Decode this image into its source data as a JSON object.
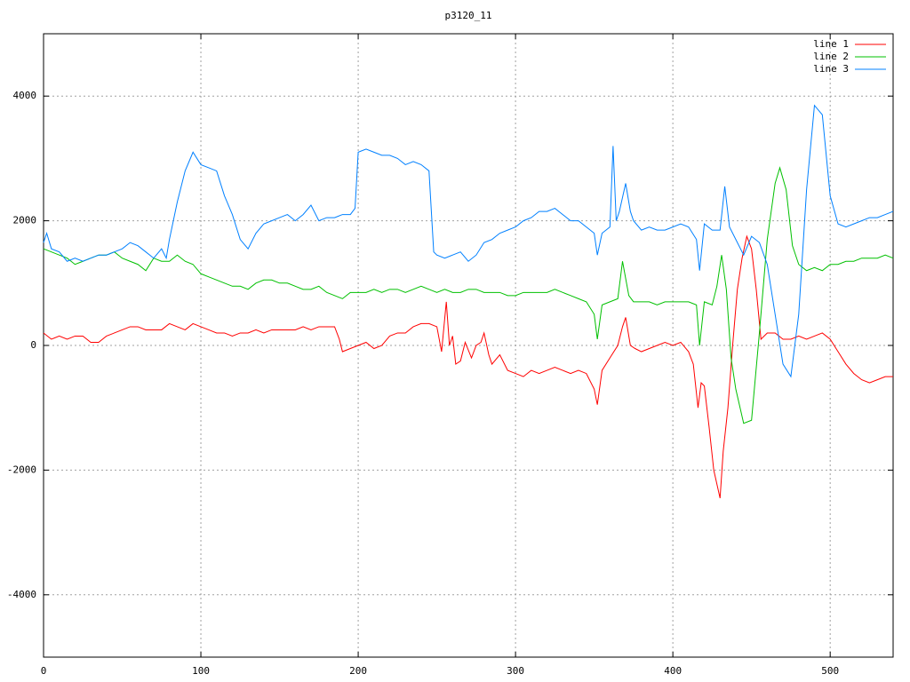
{
  "chart_data": {
    "type": "line",
    "title": "p3120_11",
    "xlim": [
      0,
      540
    ],
    "ylim": [
      -5000,
      5000
    ],
    "xticks": [
      0,
      100,
      200,
      300,
      400,
      500
    ],
    "yticks": [
      -4000,
      -2000,
      0,
      2000,
      4000
    ],
    "grid": true,
    "legend": "top-right",
    "series": [
      {
        "name": "line 1",
        "color": "#ff0000",
        "x": [
          0,
          5,
          10,
          15,
          20,
          25,
          30,
          35,
          40,
          45,
          50,
          55,
          60,
          65,
          70,
          75,
          80,
          85,
          90,
          95,
          100,
          105,
          110,
          115,
          120,
          125,
          130,
          135,
          140,
          145,
          150,
          155,
          160,
          165,
          170,
          175,
          180,
          185,
          188,
          190,
          195,
          200,
          205,
          210,
          215,
          220,
          225,
          230,
          235,
          240,
          245,
          250,
          253,
          256,
          258,
          260,
          262,
          265,
          268,
          272,
          275,
          278,
          280,
          283,
          285,
          290,
          295,
          300,
          305,
          310,
          315,
          320,
          325,
          330,
          335,
          340,
          345,
          350,
          352,
          355,
          360,
          365,
          368,
          370,
          373,
          376,
          380,
          385,
          390,
          395,
          400,
          405,
          410,
          413,
          416,
          418,
          420,
          423,
          426,
          430,
          432,
          435,
          438,
          441,
          444,
          447,
          450,
          453,
          456,
          460,
          465,
          470,
          475,
          480,
          485,
          490,
          495,
          500,
          505,
          510,
          515,
          520,
          525,
          530,
          535,
          540
        ],
        "values": [
          200,
          100,
          150,
          100,
          150,
          150,
          50,
          50,
          150,
          200,
          250,
          300,
          300,
          250,
          250,
          250,
          350,
          300,
          250,
          350,
          300,
          250,
          200,
          200,
          150,
          200,
          200,
          250,
          200,
          250,
          250,
          250,
          250,
          300,
          250,
          300,
          300,
          300,
          100,
          -100,
          -50,
          0,
          50,
          -50,
          0,
          150,
          200,
          200,
          300,
          350,
          350,
          300,
          -100,
          700,
          0,
          150,
          -300,
          -250,
          50,
          -200,
          0,
          50,
          200,
          -150,
          -300,
          -150,
          -400,
          -450,
          -500,
          -400,
          -450,
          -400,
          -350,
          -400,
          -450,
          -400,
          -450,
          -700,
          -950,
          -400,
          -200,
          0,
          300,
          450,
          0,
          -50,
          -100,
          -50,
          0,
          50,
          0,
          50,
          -100,
          -300,
          -1000,
          -600,
          -650,
          -1300,
          -2000,
          -2450,
          -1700,
          -1000,
          0,
          900,
          1400,
          1750,
          1550,
          900,
          100,
          200,
          200,
          100,
          100,
          150,
          100,
          150,
          200,
          100,
          -100,
          -300,
          -450,
          -550,
          -600,
          -550,
          -500,
          -500
        ]
      },
      {
        "name": "line 2",
        "color": "#00c000",
        "x": [
          0,
          5,
          10,
          15,
          20,
          25,
          30,
          35,
          40,
          45,
          50,
          55,
          60,
          65,
          70,
          75,
          80,
          85,
          90,
          95,
          100,
          105,
          110,
          115,
          120,
          125,
          130,
          135,
          140,
          145,
          150,
          155,
          160,
          165,
          170,
          175,
          180,
          185,
          190,
          195,
          200,
          205,
          210,
          215,
          220,
          225,
          230,
          235,
          240,
          245,
          250,
          255,
          260,
          265,
          270,
          275,
          280,
          285,
          290,
          295,
          300,
          305,
          310,
          315,
          320,
          325,
          330,
          335,
          340,
          345,
          350,
          352,
          355,
          360,
          365,
          368,
          372,
          375,
          380,
          385,
          390,
          395,
          400,
          405,
          410,
          415,
          417,
          420,
          425,
          428,
          431,
          434,
          437,
          440,
          445,
          450,
          455,
          460,
          465,
          468,
          472,
          476,
          480,
          485,
          490,
          495,
          500,
          505,
          510,
          515,
          520,
          525,
          530,
          535,
          540
        ],
        "values": [
          1550,
          1500,
          1450,
          1400,
          1300,
          1350,
          1400,
          1450,
          1450,
          1500,
          1400,
          1350,
          1300,
          1200,
          1400,
          1350,
          1350,
          1450,
          1350,
          1300,
          1150,
          1100,
          1050,
          1000,
          950,
          950,
          900,
          1000,
          1050,
          1050,
          1000,
          1000,
          950,
          900,
          900,
          950,
          850,
          800,
          750,
          850,
          850,
          850,
          900,
          850,
          900,
          900,
          850,
          900,
          950,
          900,
          850,
          900,
          850,
          850,
          900,
          900,
          850,
          850,
          850,
          800,
          800,
          850,
          850,
          850,
          850,
          900,
          850,
          800,
          750,
          700,
          500,
          100,
          650,
          700,
          750,
          1350,
          800,
          700,
          700,
          700,
          650,
          700,
          700,
          700,
          700,
          650,
          0,
          700,
          650,
          950,
          1450,
          900,
          -200,
          -700,
          -1250,
          -1200,
          200,
          1700,
          2600,
          2850,
          2500,
          1600,
          1300,
          1200,
          1250,
          1200,
          1300,
          1300,
          1350,
          1350,
          1400,
          1400,
          1400,
          1450,
          1400
        ]
      },
      {
        "name": "line 3",
        "color": "#0080ff",
        "x": [
          0,
          2,
          5,
          10,
          15,
          20,
          25,
          30,
          35,
          40,
          45,
          50,
          55,
          60,
          65,
          70,
          75,
          78,
          80,
          85,
          90,
          95,
          100,
          105,
          110,
          115,
          120,
          125,
          130,
          135,
          140,
          145,
          150,
          155,
          160,
          165,
          170,
          175,
          180,
          185,
          190,
          195,
          198,
          200,
          205,
          210,
          215,
          220,
          225,
          230,
          235,
          240,
          245,
          248,
          250,
          255,
          260,
          265,
          270,
          275,
          280,
          285,
          290,
          295,
          300,
          305,
          310,
          315,
          320,
          325,
          330,
          335,
          340,
          345,
          350,
          352,
          355,
          360,
          362,
          364,
          366,
          370,
          373,
          375,
          380,
          385,
          390,
          395,
          400,
          405,
          410,
          415,
          417,
          420,
          425,
          430,
          433,
          436,
          440,
          445,
          450,
          455,
          460,
          465,
          470,
          475,
          480,
          485,
          490,
          495,
          500,
          505,
          510,
          515,
          520,
          525,
          530,
          535,
          540
        ],
        "values": [
          1650,
          1800,
          1550,
          1500,
          1350,
          1400,
          1350,
          1400,
          1450,
          1450,
          1500,
          1550,
          1650,
          1600,
          1500,
          1400,
          1550,
          1400,
          1700,
          2300,
          2800,
          3100,
          2900,
          2850,
          2800,
          2400,
          2100,
          1700,
          1550,
          1800,
          1950,
          2000,
          2050,
          2100,
          2000,
          2100,
          2250,
          2000,
          2050,
          2050,
          2100,
          2100,
          2200,
          3100,
          3150,
          3100,
          3050,
          3050,
          3000,
          2900,
          2950,
          2900,
          2800,
          1500,
          1450,
          1400,
          1450,
          1500,
          1350,
          1450,
          1650,
          1700,
          1800,
          1850,
          1900,
          2000,
          2050,
          2150,
          2150,
          2200,
          2100,
          2000,
          2000,
          1900,
          1800,
          1450,
          1800,
          1900,
          3200,
          2000,
          2150,
          2600,
          2150,
          2000,
          1850,
          1900,
          1850,
          1850,
          1900,
          1950,
          1900,
          1700,
          1200,
          1950,
          1850,
          1850,
          2550,
          1900,
          1700,
          1450,
          1750,
          1650,
          1300,
          500,
          -300,
          -500,
          500,
          2500,
          3850,
          3700,
          2400,
          1950,
          1900,
          1950,
          2000,
          2050,
          2050,
          2100,
          2150
        ]
      }
    ]
  }
}
